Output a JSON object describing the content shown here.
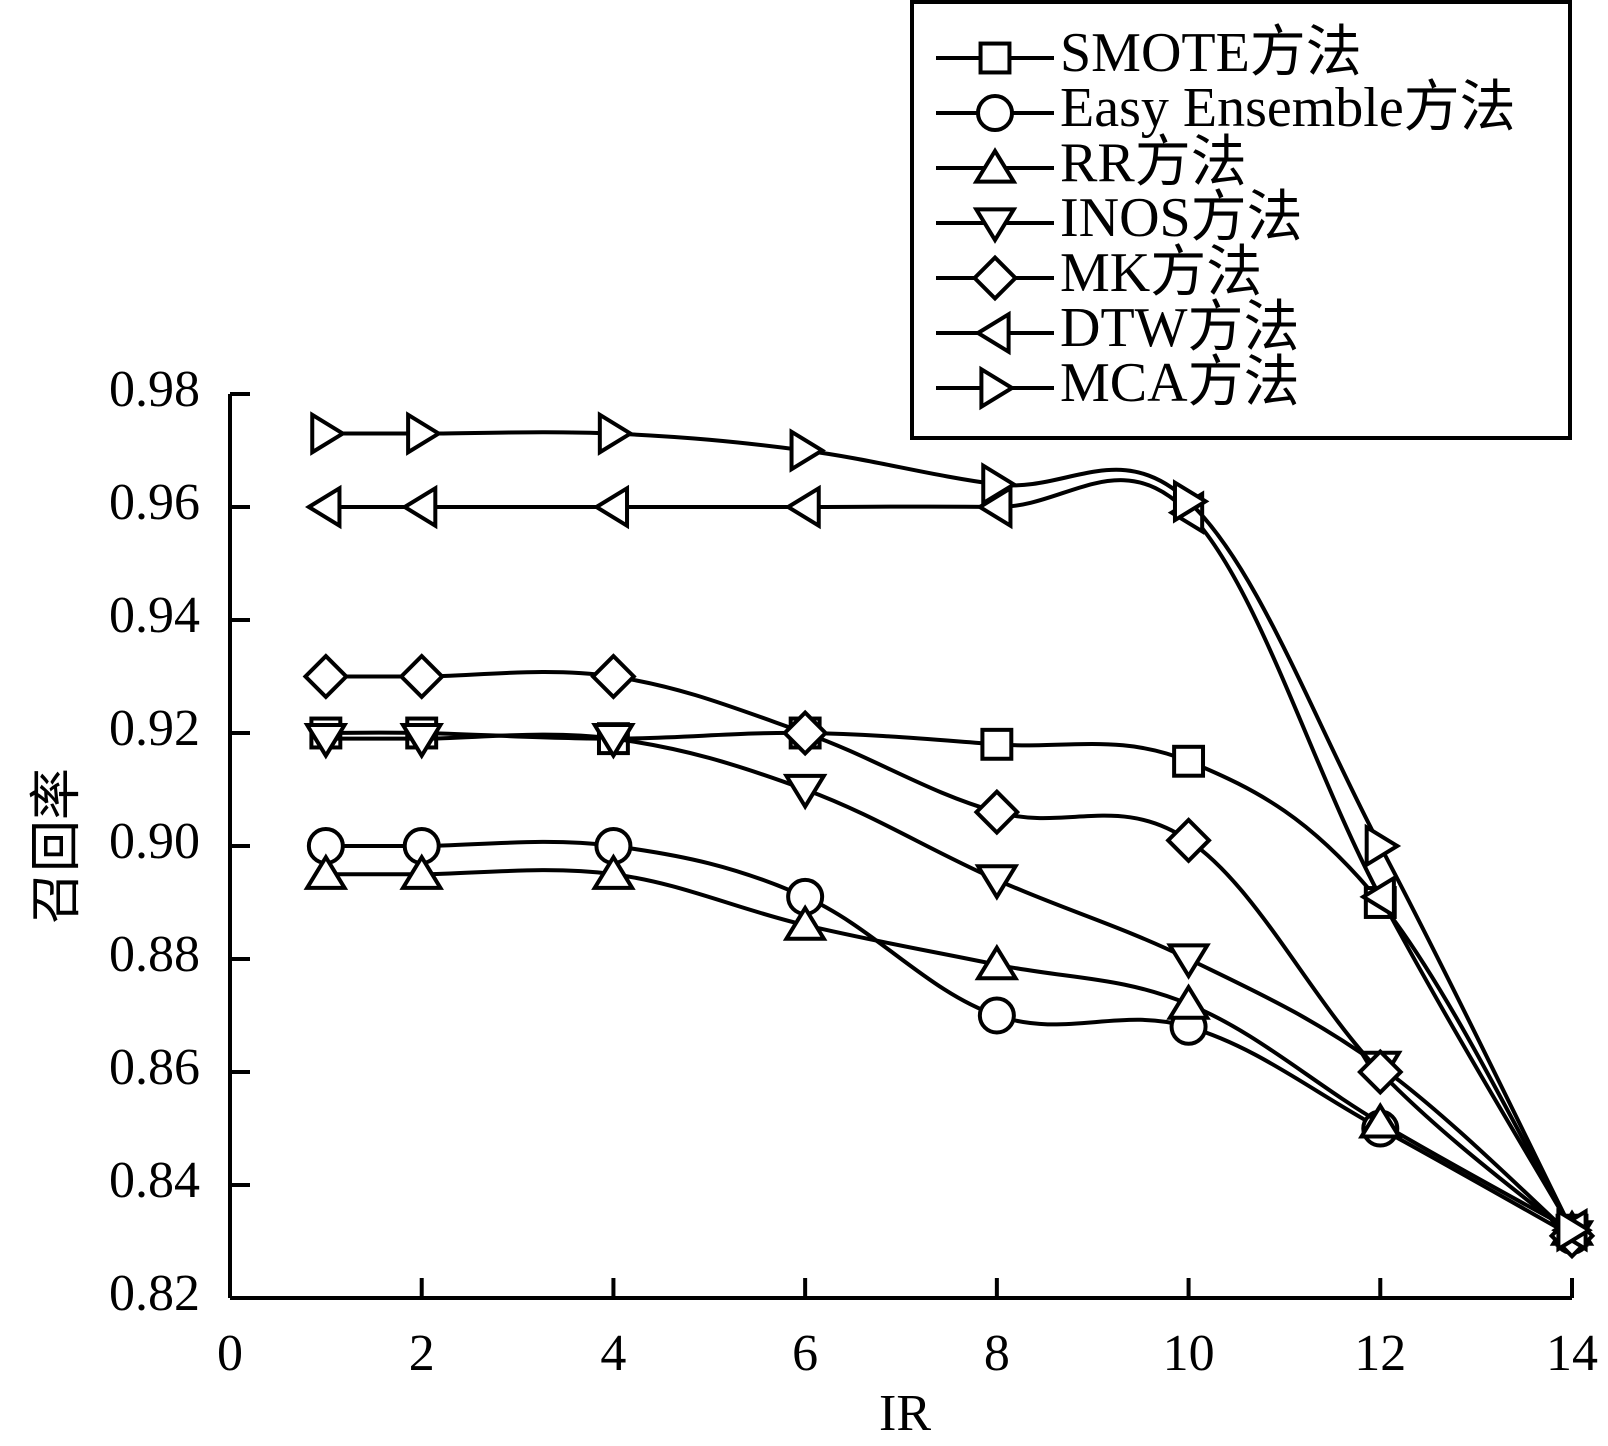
{
  "chart_data": {
    "type": "line",
    "xlabel": "IR",
    "ylabel": "召回率",
    "xlim": [
      0,
      14
    ],
    "ylim": [
      0.82,
      0.98
    ],
    "xticks": [
      0,
      2,
      4,
      6,
      8,
      10,
      12,
      14
    ],
    "yticks": [
      0.82,
      0.84,
      0.86,
      0.88,
      0.9,
      0.92,
      0.94,
      0.96,
      0.98
    ],
    "ytick_labels": [
      "0.82",
      "0.84",
      "0.86",
      "0.88",
      "0.90",
      "0.92",
      "0.94",
      "0.96",
      "0.98"
    ],
    "grid": false,
    "legend_position": "top-right",
    "x": [
      1,
      2,
      4,
      6,
      8,
      10,
      12,
      14
    ],
    "series": [
      {
        "name": "SMOTE方法",
        "marker": "square",
        "values": [
          0.92,
          0.92,
          0.919,
          0.92,
          0.918,
          0.915,
          0.89,
          0.832
        ]
      },
      {
        "name": "Easy Ensemble方法",
        "marker": "circle",
        "values": [
          0.9,
          0.9,
          0.9,
          0.891,
          0.87,
          0.868,
          0.85,
          0.831
        ]
      },
      {
        "name": "RR方法",
        "marker": "triangle-up",
        "values": [
          0.895,
          0.895,
          0.895,
          0.886,
          0.879,
          0.872,
          0.851,
          0.832
        ]
      },
      {
        "name": "INOS方法",
        "marker": "triangle-down",
        "values": [
          0.919,
          0.919,
          0.919,
          0.91,
          0.894,
          0.88,
          0.861,
          0.831
        ]
      },
      {
        "name": "MK方法",
        "marker": "diamond",
        "values": [
          0.93,
          0.93,
          0.93,
          0.92,
          0.906,
          0.901,
          0.86,
          0.831
        ]
      },
      {
        "name": "DTW方法",
        "marker": "triangle-left",
        "values": [
          0.96,
          0.96,
          0.96,
          0.96,
          0.96,
          0.959,
          0.891,
          0.832
        ]
      },
      {
        "name": "MCA方法",
        "marker": "triangle-right",
        "values": [
          0.973,
          0.973,
          0.973,
          0.97,
          0.964,
          0.961,
          0.9,
          0.832
        ]
      }
    ]
  }
}
